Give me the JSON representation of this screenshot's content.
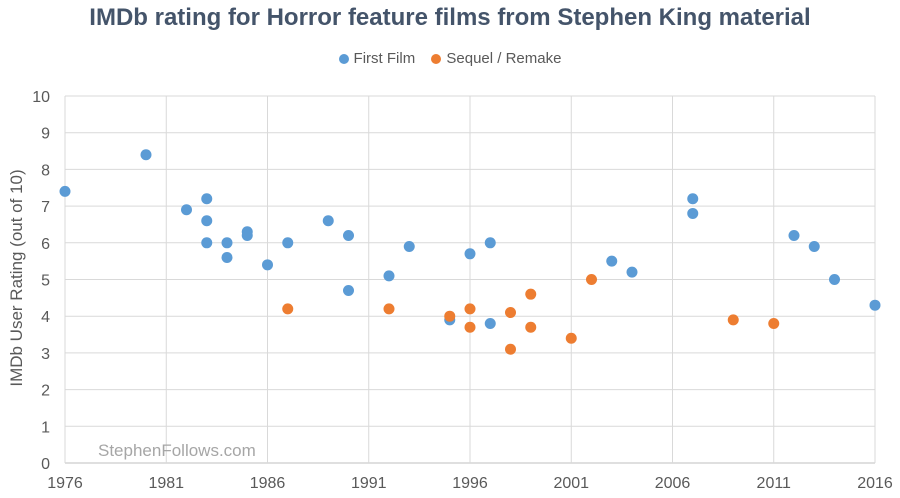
{
  "chart_data": {
    "type": "scatter",
    "title": "IMDb rating for Horror feature films from Stephen King material",
    "ylabel": "IMDb User Rating (out of 10)",
    "xlabel": "",
    "xlim": [
      1976,
      2016
    ],
    "ylim": [
      0,
      10
    ],
    "xticks": [
      "1976",
      "1981",
      "1986",
      "1991",
      "1996",
      "2001",
      "2006",
      "2011",
      "2016"
    ],
    "yticks": [
      "0",
      "1",
      "2",
      "3",
      "4",
      "5",
      "6",
      "7",
      "8",
      "9",
      "10"
    ],
    "grid": true,
    "legend_position": "top",
    "watermark": "StephenFollows.com",
    "series": [
      {
        "name": "First Film",
        "color": "#5b9bd5",
        "points": [
          [
            1976,
            7.4
          ],
          [
            1980,
            8.4
          ],
          [
            1982,
            6.9
          ],
          [
            1983,
            7.2
          ],
          [
            1983,
            6.6
          ],
          [
            1983,
            6.0
          ],
          [
            1984,
            6.0
          ],
          [
            1984,
            5.6
          ],
          [
            1985,
            6.3
          ],
          [
            1985,
            6.2
          ],
          [
            1986,
            5.4
          ],
          [
            1987,
            6.0
          ],
          [
            1989,
            6.6
          ],
          [
            1990,
            6.2
          ],
          [
            1990,
            4.7
          ],
          [
            1992,
            5.1
          ],
          [
            1993,
            5.9
          ],
          [
            1995,
            3.9
          ],
          [
            1996,
            5.7
          ],
          [
            1997,
            6.0
          ],
          [
            1997,
            3.8
          ],
          [
            2003,
            5.5
          ],
          [
            2004,
            5.2
          ],
          [
            2007,
            7.2
          ],
          [
            2007,
            6.8
          ],
          [
            2012,
            6.2
          ],
          [
            2013,
            5.9
          ],
          [
            2014,
            5.0
          ],
          [
            2016,
            4.3
          ]
        ]
      },
      {
        "name": "Sequel / Remake",
        "color": "#ed7d31",
        "points": [
          [
            1987,
            4.2
          ],
          [
            1992,
            4.2
          ],
          [
            1995,
            4.0
          ],
          [
            1996,
            4.2
          ],
          [
            1996,
            3.7
          ],
          [
            1998,
            4.1
          ],
          [
            1998,
            3.1
          ],
          [
            1999,
            4.6
          ],
          [
            1999,
            3.7
          ],
          [
            2001,
            3.4
          ],
          [
            2002,
            5.0
          ],
          [
            2009,
            3.9
          ],
          [
            2011,
            3.8
          ]
        ]
      }
    ]
  }
}
